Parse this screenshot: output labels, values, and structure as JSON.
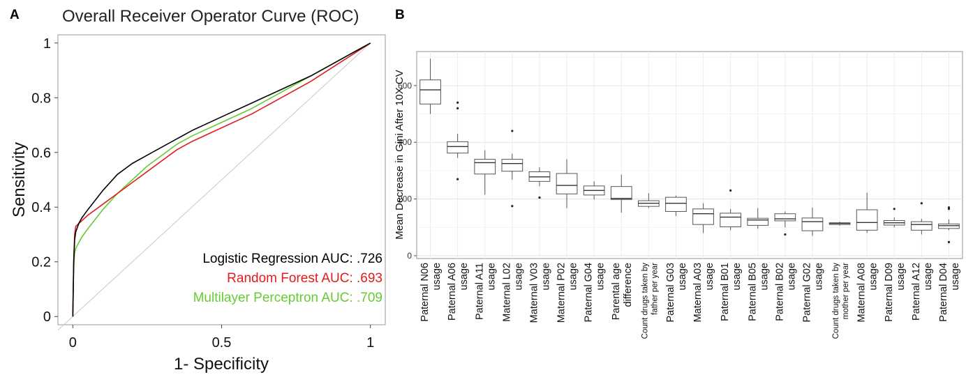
{
  "panel_a": {
    "letter": "A",
    "chart_data": {
      "type": "line",
      "title": "Overall Receiver Operator Curve (ROC)",
      "xlabel": "1- Specificity",
      "ylabel": "Sensitivity",
      "xlim": [
        -0.05,
        1.05
      ],
      "ylim": [
        -0.03,
        1.03
      ],
      "x_ticks": [
        "0",
        "0.5",
        "1"
      ],
      "y_ticks": [
        "0",
        "0.2",
        "0.4",
        "0.6",
        "0.8",
        "1"
      ],
      "grid": false,
      "legend_position": "bottom-right",
      "colors": {
        "logistic": "#000000",
        "random_forest": "#e41a1c",
        "mlp": "#66cc33",
        "diagonal": "#c8c8c8"
      },
      "legend": [
        {
          "text": "Logistic Regression AUC: .726",
          "color": "#000000"
        },
        {
          "text": "Random Forest AUC: .693",
          "color": "#e41a1c"
        },
        {
          "text": "Multilayer Perceptron AUC: .709",
          "color": "#66cc33"
        }
      ],
      "series": [
        {
          "name": "Logistic Regression AUC: .726",
          "color": "#000000",
          "x": [
            0,
            0.003,
            0.006,
            0.01,
            0.02,
            0.03,
            0.05,
            0.1,
            0.15,
            0.2,
            0.25,
            0.3,
            0.4,
            0.5,
            0.6,
            0.7,
            0.8,
            0.9,
            0.95,
            1.0
          ],
          "y": [
            0,
            0.2,
            0.28,
            0.31,
            0.34,
            0.36,
            0.39,
            0.46,
            0.52,
            0.56,
            0.59,
            0.62,
            0.68,
            0.73,
            0.78,
            0.83,
            0.88,
            0.94,
            0.97,
            1.0
          ]
        },
        {
          "name": "Random Forest AUC: .693",
          "color": "#e41a1c",
          "x": [
            0,
            0.003,
            0.006,
            0.01,
            0.02,
            0.03,
            0.05,
            0.1,
            0.15,
            0.2,
            0.25,
            0.3,
            0.35,
            0.4,
            0.5,
            0.6,
            0.7,
            0.8,
            0.9,
            0.95,
            1.0
          ],
          "y": [
            0,
            0.2,
            0.3,
            0.33,
            0.34,
            0.35,
            0.37,
            0.41,
            0.45,
            0.49,
            0.53,
            0.57,
            0.61,
            0.64,
            0.69,
            0.74,
            0.8,
            0.86,
            0.93,
            0.965,
            1.0
          ]
        },
        {
          "name": "Multilayer Perceptron AUC: .709",
          "color": "#66cc33",
          "x": [
            0,
            0.003,
            0.006,
            0.01,
            0.02,
            0.03,
            0.05,
            0.1,
            0.15,
            0.2,
            0.25,
            0.3,
            0.35,
            0.4,
            0.5,
            0.6,
            0.7,
            0.8,
            0.9,
            0.95,
            1.0
          ],
          "y": [
            0,
            0.18,
            0.23,
            0.25,
            0.27,
            0.29,
            0.32,
            0.39,
            0.45,
            0.5,
            0.55,
            0.59,
            0.63,
            0.66,
            0.71,
            0.76,
            0.82,
            0.88,
            0.94,
            0.97,
            1.0
          ]
        },
        {
          "name": "",
          "color": "#c8c8c8",
          "x": [
            -0.05,
            1.0
          ],
          "y": [
            -0.05,
            1.0
          ]
        }
      ]
    }
  },
  "panel_b": {
    "letter": "B",
    "chart_data": {
      "type": "box",
      "ylabel": "Mean Decrease in Gini After 10X CV",
      "xlabel": "",
      "ylim": [
        -10,
        720
      ],
      "y_ticks": [
        "0",
        "200",
        "400",
        "600"
      ],
      "grid": true,
      "categories": [
        {
          "lines": [
            "Paternal N06",
            "usage"
          ],
          "small": false
        },
        {
          "lines": [
            "Paternal A06",
            "usage"
          ],
          "small": false
        },
        {
          "lines": [
            "Paternal A11",
            "usage"
          ],
          "small": false
        },
        {
          "lines": [
            "Maternal L02",
            "usage"
          ],
          "small": false
        },
        {
          "lines": [
            "Maternal V03",
            "usage"
          ],
          "small": false
        },
        {
          "lines": [
            "Maternal P02",
            "usage"
          ],
          "small": false
        },
        {
          "lines": [
            "Paternal G04",
            "usage"
          ],
          "small": false
        },
        {
          "lines": [
            "Parental age",
            "difference"
          ],
          "small": false
        },
        {
          "lines": [
            "Count drugs taken by",
            "father per year"
          ],
          "small": true
        },
        {
          "lines": [
            "Paternal G03",
            "usage"
          ],
          "small": false
        },
        {
          "lines": [
            "Maternal A03",
            "usage"
          ],
          "small": false
        },
        {
          "lines": [
            "Paternal B01",
            "usage"
          ],
          "small": false
        },
        {
          "lines": [
            "Paternal B05",
            "usage"
          ],
          "small": false
        },
        {
          "lines": [
            "Paternal B02",
            "usage"
          ],
          "small": false
        },
        {
          "lines": [
            "Paternal G02",
            "usage"
          ],
          "small": false
        },
        {
          "lines": [
            "Count drugs taken by",
            "mother per year"
          ],
          "small": true
        },
        {
          "lines": [
            "Maternal A08",
            "usage"
          ],
          "small": false
        },
        {
          "lines": [
            "Paternal D09",
            "usage"
          ],
          "small": false
        },
        {
          "lines": [
            "Paternal A12",
            "usage"
          ],
          "small": false
        },
        {
          "lines": [
            "Paternal D04",
            "usage"
          ],
          "small": false
        }
      ],
      "boxes": [
        {
          "min": 500,
          "q1": 535,
          "median": 585,
          "q3": 620,
          "max": 695,
          "outliers": []
        },
        {
          "min": 345,
          "q1": 362,
          "median": 385,
          "q3": 402,
          "max": 430,
          "outliers": [
            540,
            520,
            270
          ]
        },
        {
          "min": 215,
          "q1": 288,
          "median": 328,
          "q3": 340,
          "max": 372,
          "outliers": []
        },
        {
          "min": 268,
          "q1": 298,
          "median": 325,
          "q3": 340,
          "max": 360,
          "outliers": [
            440,
            175
          ]
        },
        {
          "min": 245,
          "q1": 262,
          "median": 278,
          "q3": 296,
          "max": 312,
          "outliers": [
            205
          ]
        },
        {
          "min": 168,
          "q1": 218,
          "median": 248,
          "q3": 290,
          "max": 340,
          "outliers": []
        },
        {
          "min": 198,
          "q1": 214,
          "median": 230,
          "q3": 246,
          "max": 262,
          "outliers": []
        },
        {
          "min": 152,
          "q1": 198,
          "median": 202,
          "q3": 244,
          "max": 286,
          "outliers": []
        },
        {
          "min": 168,
          "q1": 174,
          "median": 185,
          "q3": 194,
          "max": 220,
          "outliers": []
        },
        {
          "min": 140,
          "q1": 156,
          "median": 185,
          "q3": 206,
          "max": 212,
          "outliers": []
        },
        {
          "min": 80,
          "q1": 110,
          "median": 148,
          "q3": 165,
          "max": 185,
          "outliers": []
        },
        {
          "min": 90,
          "q1": 102,
          "median": 136,
          "q3": 150,
          "max": 165,
          "outliers": [
            230
          ]
        },
        {
          "min": 95,
          "q1": 107,
          "median": 126,
          "q3": 132,
          "max": 168,
          "outliers": []
        },
        {
          "min": 100,
          "q1": 123,
          "median": 130,
          "q3": 148,
          "max": 156,
          "outliers": [
            75
          ]
        },
        {
          "min": 70,
          "q1": 88,
          "median": 120,
          "q3": 133,
          "max": 170,
          "outliers": []
        },
        {
          "min": 106,
          "q1": 110,
          "median": 114,
          "q3": 116,
          "max": 120,
          "outliers": []
        },
        {
          "min": 80,
          "q1": 90,
          "median": 117,
          "q3": 162,
          "max": 222,
          "outliers": []
        },
        {
          "min": 100,
          "q1": 108,
          "median": 116,
          "q3": 124,
          "max": 135,
          "outliers": [
            165
          ]
        },
        {
          "min": 75,
          "q1": 90,
          "median": 110,
          "q3": 120,
          "max": 130,
          "outliers": [
            185
          ]
        },
        {
          "min": 90,
          "q1": 96,
          "median": 106,
          "q3": 112,
          "max": 128,
          "outliers": [
            170,
            165,
            48
          ]
        }
      ]
    }
  }
}
